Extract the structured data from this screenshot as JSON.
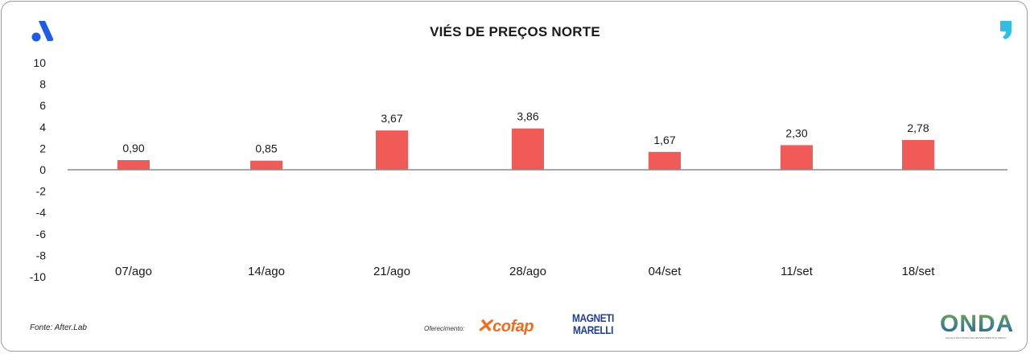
{
  "title": "VIÉS DE PREÇOS NORTE",
  "source": "Fonte: After.Lab",
  "sponsor_label": "Oferecimento:",
  "logos": {
    "cofap": "cofap",
    "magneti_line1": "MAGNETI",
    "magneti_line2": "MARELLI",
    "onda": "ONDA",
    "onda_sub": "ESCALA NOS NÍVEIS DE ABASTECIMENTO E PREÇO"
  },
  "colors": {
    "bar": "#f05a57",
    "brand_blue": "#1e5be6",
    "comma": "#33bde0"
  },
  "chart_data": {
    "type": "bar",
    "title": "VIÉS DE PREÇOS NORTE",
    "categories": [
      "07/ago",
      "14/ago",
      "21/ago",
      "28/ago",
      "04/set",
      "11/set",
      "18/set"
    ],
    "values": [
      0.9,
      0.85,
      3.67,
      3.86,
      1.67,
      2.3,
      2.78
    ],
    "value_labels": [
      "0,90",
      "0,85",
      "3,67",
      "3,86",
      "1,67",
      "2,30",
      "2,78"
    ],
    "ylim": [
      -10,
      10
    ],
    "yticks": [
      10,
      8,
      6,
      4,
      2,
      0,
      -2,
      -4,
      -6,
      -8,
      -10
    ],
    "ytick_labels": [
      "10",
      "8",
      "6",
      "4",
      "2",
      "0",
      "-2",
      "-4",
      "-6",
      "-8",
      "-10"
    ],
    "grid": false,
    "legend": "none"
  }
}
